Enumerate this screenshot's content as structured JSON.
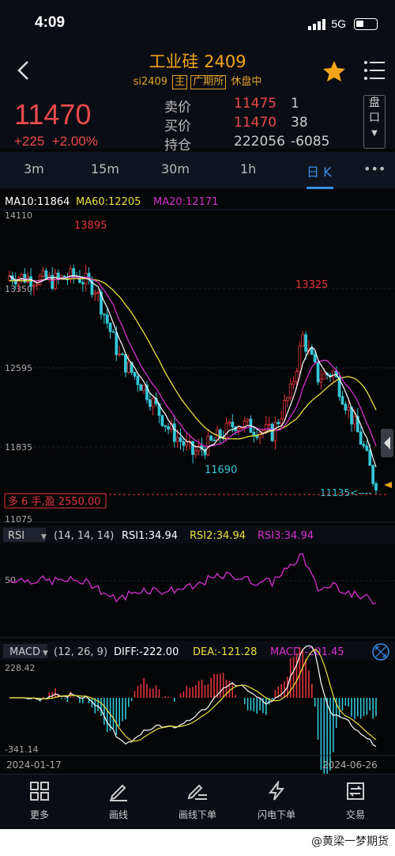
{
  "status": {
    "time": "4:09",
    "network": "5G"
  },
  "header": {
    "title": "工业硅 2409",
    "code": "si2409",
    "tag_main": "主",
    "tag_exchange": "广期所",
    "state": "休盘中"
  },
  "quote": {
    "last": "11470",
    "change": "+225",
    "change_pct": "+2.00%",
    "ask_label": "卖价",
    "ask": "11475",
    "ask_vol": "1",
    "bid_label": "买价",
    "bid": "11470",
    "bid_vol": "38",
    "oi_label": "持仓",
    "oi": "222056",
    "oi_chg": "-6085",
    "pankou": [
      "盘",
      "口"
    ]
  },
  "tabs": [
    "3m",
    "15m",
    "30m",
    "1h",
    "日 K",
    "•••"
  ],
  "active_tab": "日 K",
  "chart": {
    "ma_line": {
      "ma10": "MA10:11864",
      "ma60": "MA60:12205",
      "ma20": "MA20:12171"
    },
    "y_ticks": [
      "14110",
      "13350",
      "12595",
      "11835",
      "11075"
    ],
    "high_label": "13895",
    "high2_label": "13325",
    "low_label": "11690",
    "low2_label": "11135<----",
    "position_label": "多 6 手,盈 2550.00",
    "rsi_header": {
      "name": "RSI",
      "params": "(14, 14, 14)",
      "rsi1": "RSI1:34.94",
      "rsi2": "RSI2:34.94",
      "rsi3": "RSI3:34.94"
    },
    "rsi_tick": "50",
    "macd_header": {
      "name": "MACD",
      "params": "(12, 26, 9)",
      "diff": "DIFF:-222.00",
      "dea": "DEA:-121.28",
      "macd": "MACD:-201.45"
    },
    "macd_top": "228.42",
    "macd_bottom": "-341.14",
    "date_start": "2024-01-17",
    "date_end": "2024-06-26",
    "colors": {
      "up": "#e3353a",
      "down": "#33c6d6",
      "ma10": "#ffffff",
      "ma60": "#e8e23a",
      "ma20": "#d62fd0"
    }
  },
  "bottom_nav": [
    "更多",
    "画线",
    "画线下单",
    "闪电下单",
    "交易"
  ],
  "watermark": "@黄梁一梦期货"
}
